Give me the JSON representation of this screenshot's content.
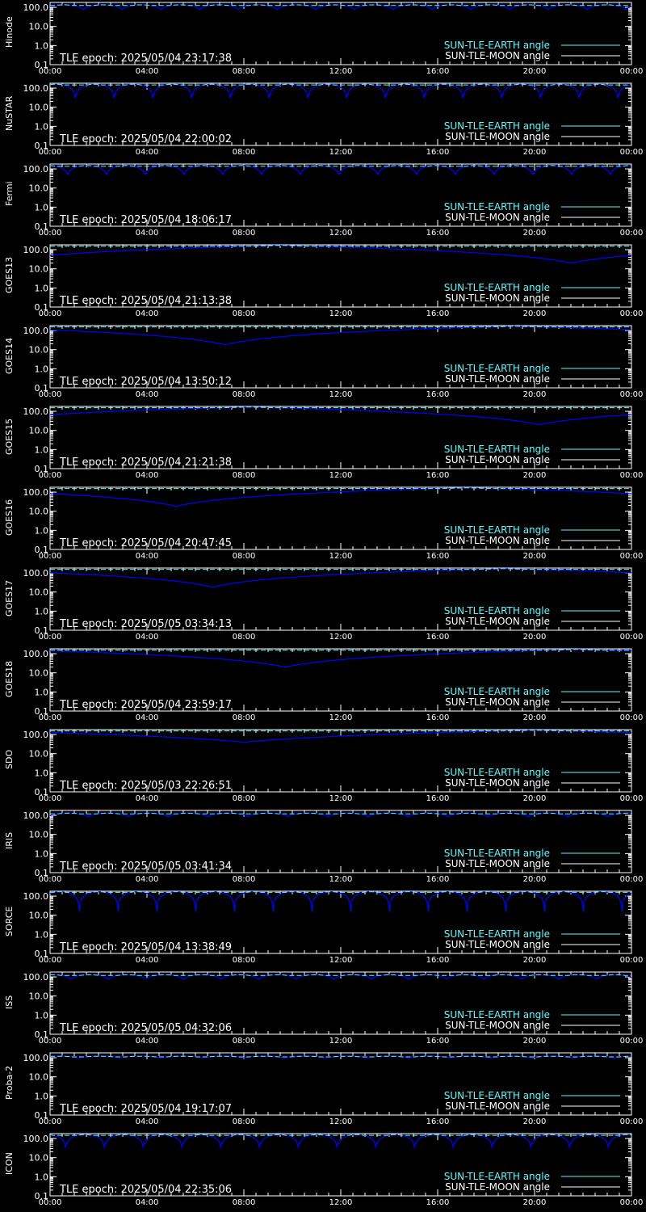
{
  "colors": {
    "background": "#000000",
    "axes": "#ffffff",
    "earth_series": "#55ffff",
    "moon_series": "#0000ff"
  },
  "chart_data": [
    {
      "type": "line",
      "ylabel": "Hinode",
      "epoch_label": "TLE epoch: 2025/05/04 23:17:38",
      "x_ticks": [
        "00:00",
        "04:00",
        "08:00",
        "12:00",
        "16:00",
        "20:00",
        "00:00"
      ],
      "y_ticks": [
        "100.0",
        "10.0",
        "1.0",
        "0.1"
      ],
      "yscale": "log",
      "ylim": [
        0.1,
        180
      ],
      "xlim_hours": [
        0,
        24
      ],
      "legend": [
        "SUN-TLE-EARTH angle",
        "SUN-TLE-MOON angle"
      ],
      "curve": {
        "kind": "orbit",
        "period_hours": 1.6,
        "min": 70,
        "max": 135,
        "phase": 0.15
      }
    },
    {
      "type": "line",
      "ylabel": "NuSTAR",
      "epoch_label": "TLE epoch: 2025/05/04 22:00:02",
      "x_ticks": [
        "00:00",
        "04:00",
        "08:00",
        "12:00",
        "16:00",
        "20:00",
        "00:00"
      ],
      "y_ticks": [
        "100.0",
        "10.0",
        "1.0",
        "0.1"
      ],
      "yscale": "log",
      "ylim": [
        0.1,
        180
      ],
      "xlim_hours": [
        0,
        24
      ],
      "legend": [
        "SUN-TLE-EARTH angle",
        "SUN-TLE-MOON angle"
      ],
      "curve": {
        "kind": "orbit",
        "period_hours": 1.6,
        "min": 20,
        "max": 160,
        "phase": 0.35
      }
    },
    {
      "type": "line",
      "ylabel": "Fermi",
      "epoch_label": "TLE epoch: 2025/05/04 18:06:17",
      "x_ticks": [
        "00:00",
        "04:00",
        "08:00",
        "12:00",
        "16:00",
        "20:00",
        "00:00"
      ],
      "y_ticks": [
        "100.0",
        "10.0",
        "1.0",
        "0.1"
      ],
      "yscale": "log",
      "ylim": [
        0.1,
        180
      ],
      "xlim_hours": [
        0,
        24
      ],
      "legend": [
        "SUN-TLE-EARTH angle",
        "SUN-TLE-MOON angle"
      ],
      "curve": {
        "kind": "orbit",
        "period_hours": 1.6,
        "min": 40,
        "max": 150,
        "phase": 0.55
      }
    },
    {
      "type": "line",
      "ylabel": "GOES13",
      "epoch_label": "TLE epoch: 2025/05/04 21:13:38",
      "x_ticks": [
        "00:00",
        "04:00",
        "08:00",
        "12:00",
        "16:00",
        "20:00",
        "00:00"
      ],
      "y_ticks": [
        "100.0",
        "10.0",
        "1.0",
        "0.1"
      ],
      "yscale": "log",
      "ylim": [
        0.1,
        180
      ],
      "xlim_hours": [
        0,
        24
      ],
      "legend": [
        "SUN-TLE-EARTH angle",
        "SUN-TLE-MOON angle"
      ],
      "curve": {
        "kind": "geo",
        "min_hour": 21.5,
        "min": 20,
        "max": 168
      }
    },
    {
      "type": "line",
      "ylabel": "GOES14",
      "epoch_label": "TLE epoch: 2025/05/04 13:50:12",
      "x_ticks": [
        "00:00",
        "04:00",
        "08:00",
        "12:00",
        "16:00",
        "20:00",
        "00:00"
      ],
      "y_ticks": [
        "100.0",
        "10.0",
        "1.0",
        "0.1"
      ],
      "yscale": "log",
      "ylim": [
        0.1,
        180
      ],
      "xlim_hours": [
        0,
        24
      ],
      "legend": [
        "SUN-TLE-EARTH angle",
        "SUN-TLE-MOON angle"
      ],
      "curve": {
        "kind": "geo",
        "min_hour": 7.2,
        "min": 18,
        "max": 168
      }
    },
    {
      "type": "line",
      "ylabel": "GOES15",
      "epoch_label": "TLE epoch: 2025/05/04 21:21:38",
      "x_ticks": [
        "00:00",
        "04:00",
        "08:00",
        "12:00",
        "16:00",
        "20:00",
        "00:00"
      ],
      "y_ticks": [
        "100.0",
        "10.0",
        "1.0",
        "0.1"
      ],
      "yscale": "log",
      "ylim": [
        0.1,
        180
      ],
      "xlim_hours": [
        0,
        24
      ],
      "legend": [
        "SUN-TLE-EARTH angle",
        "SUN-TLE-MOON angle"
      ],
      "curve": {
        "kind": "geo",
        "min_hour": 20.2,
        "min": 20,
        "max": 168
      }
    },
    {
      "type": "line",
      "ylabel": "GOES16",
      "epoch_label": "TLE epoch: 2025/05/04 20:47:45",
      "x_ticks": [
        "00:00",
        "04:00",
        "08:00",
        "12:00",
        "16:00",
        "20:00",
        "00:00"
      ],
      "y_ticks": [
        "100.0",
        "10.0",
        "1.0",
        "0.1"
      ],
      "yscale": "log",
      "ylim": [
        0.1,
        180
      ],
      "xlim_hours": [
        0,
        24
      ],
      "legend": [
        "SUN-TLE-EARTH angle",
        "SUN-TLE-MOON angle"
      ],
      "curve": {
        "kind": "geo",
        "min_hour": 5.2,
        "min": 18,
        "max": 168
      }
    },
    {
      "type": "line",
      "ylabel": "GOES17",
      "epoch_label": "TLE epoch: 2025/05/05 03:34:13",
      "x_ticks": [
        "00:00",
        "04:00",
        "08:00",
        "12:00",
        "16:00",
        "20:00",
        "00:00"
      ],
      "y_ticks": [
        "100.0",
        "10.0",
        "1.0",
        "0.1"
      ],
      "yscale": "log",
      "ylim": [
        0.1,
        180
      ],
      "xlim_hours": [
        0,
        24
      ],
      "legend": [
        "SUN-TLE-EARTH angle",
        "SUN-TLE-MOON angle"
      ],
      "curve": {
        "kind": "geo",
        "min_hour": 6.7,
        "min": 18,
        "max": 168
      }
    },
    {
      "type": "line",
      "ylabel": "GOES18",
      "epoch_label": "TLE epoch: 2025/05/04 23:59:17",
      "x_ticks": [
        "00:00",
        "04:00",
        "08:00",
        "12:00",
        "16:00",
        "20:00",
        "00:00"
      ],
      "y_ticks": [
        "100.0",
        "10.0",
        "1.0",
        "0.1"
      ],
      "yscale": "log",
      "ylim": [
        0.1,
        180
      ],
      "xlim_hours": [
        0,
        24
      ],
      "legend": [
        "SUN-TLE-EARTH angle",
        "SUN-TLE-MOON angle"
      ],
      "curve": {
        "kind": "geo",
        "min_hour": 9.7,
        "min": 20,
        "max": 168
      }
    },
    {
      "type": "line",
      "ylabel": "SDO",
      "epoch_label": "TLE epoch: 2025/05/03 22:26:51",
      "x_ticks": [
        "00:00",
        "04:00",
        "08:00",
        "12:00",
        "16:00",
        "20:00",
        "00:00"
      ],
      "y_ticks": [
        "100.0",
        "10.0",
        "1.0",
        "0.1"
      ],
      "yscale": "log",
      "ylim": [
        0.1,
        180
      ],
      "xlim_hours": [
        0,
        24
      ],
      "legend": [
        "SUN-TLE-EARTH angle",
        "SUN-TLE-MOON angle"
      ],
      "curve": {
        "kind": "geo",
        "min_hour": 8.0,
        "min": 40,
        "max": 168
      }
    },
    {
      "type": "line",
      "ylabel": "IRIS",
      "epoch_label": "TLE epoch: 2025/05/05 03:41:34",
      "x_ticks": [
        "00:00",
        "04:00",
        "08:00",
        "12:00",
        "16:00",
        "20:00",
        "00:00"
      ],
      "y_ticks": [
        "100.0",
        "10.0",
        "1.0",
        "0.1"
      ],
      "yscale": "log",
      "ylim": [
        0.1,
        180
      ],
      "xlim_hours": [
        0,
        24
      ],
      "legend": [
        "SUN-TLE-EARTH angle",
        "SUN-TLE-MOON angle"
      ],
      "curve": {
        "kind": "orbit",
        "period_hours": 1.65,
        "min": 80,
        "max": 130,
        "phase": 0.05
      }
    },
    {
      "type": "line",
      "ylabel": "SORCE",
      "epoch_label": "TLE epoch: 2025/05/04 13:38:49",
      "x_ticks": [
        "00:00",
        "04:00",
        "08:00",
        "12:00",
        "16:00",
        "20:00",
        "00:00"
      ],
      "y_ticks": [
        "100.0",
        "10.0",
        "1.0",
        "0.1"
      ],
      "yscale": "log",
      "ylim": [
        0.1,
        180
      ],
      "xlim_hours": [
        0,
        24
      ],
      "legend": [
        "SUN-TLE-EARTH angle",
        "SUN-TLE-MOON angle"
      ],
      "curve": {
        "kind": "orbit",
        "period_hours": 1.6,
        "min": 15,
        "max": 170,
        "phase": 0.25
      }
    },
    {
      "type": "line",
      "ylabel": "ISS",
      "epoch_label": "TLE epoch: 2025/05/05 04:32:06",
      "x_ticks": [
        "00:00",
        "04:00",
        "08:00",
        "12:00",
        "16:00",
        "20:00",
        "00:00"
      ],
      "y_ticks": [
        "100.0",
        "10.0",
        "1.0",
        "0.1"
      ],
      "yscale": "log",
      "ylim": [
        0.1,
        180
      ],
      "xlim_hours": [
        0,
        24
      ],
      "legend": [
        "SUN-TLE-EARTH angle",
        "SUN-TLE-MOON angle"
      ],
      "curve": {
        "kind": "orbit",
        "period_hours": 1.55,
        "min": 70,
        "max": 130,
        "phase": 0.45
      }
    },
    {
      "type": "line",
      "ylabel": "Proba-2",
      "epoch_label": "TLE epoch: 2025/05/04 19:17:07",
      "x_ticks": [
        "00:00",
        "04:00",
        "08:00",
        "12:00",
        "16:00",
        "20:00",
        "00:00"
      ],
      "y_ticks": [
        "100.0",
        "10.0",
        "1.0",
        "0.1"
      ],
      "yscale": "log",
      "ylim": [
        0.1,
        180
      ],
      "xlim_hours": [
        0,
        24
      ],
      "legend": [
        "SUN-TLE-EARTH angle",
        "SUN-TLE-MOON angle"
      ],
      "curve": {
        "kind": "orbit",
        "period_hours": 1.7,
        "min": 95,
        "max": 120,
        "phase": 0.3
      }
    },
    {
      "type": "line",
      "ylabel": "ICON",
      "epoch_label": "TLE epoch: 2025/05/04 22:35:06",
      "x_ticks": [
        "00:00",
        "04:00",
        "08:00",
        "12:00",
        "16:00",
        "20:00",
        "00:00"
      ],
      "y_ticks": [
        "100.0",
        "10.0",
        "1.0",
        "0.1"
      ],
      "yscale": "log",
      "ylim": [
        0.1,
        180
      ],
      "xlim_hours": [
        0,
        24
      ],
      "legend": [
        "SUN-TLE-EARTH angle",
        "SUN-TLE-MOON angle"
      ],
      "curve": {
        "kind": "orbit",
        "period_hours": 1.6,
        "min": 25,
        "max": 160,
        "phase": 0.6
      }
    }
  ]
}
